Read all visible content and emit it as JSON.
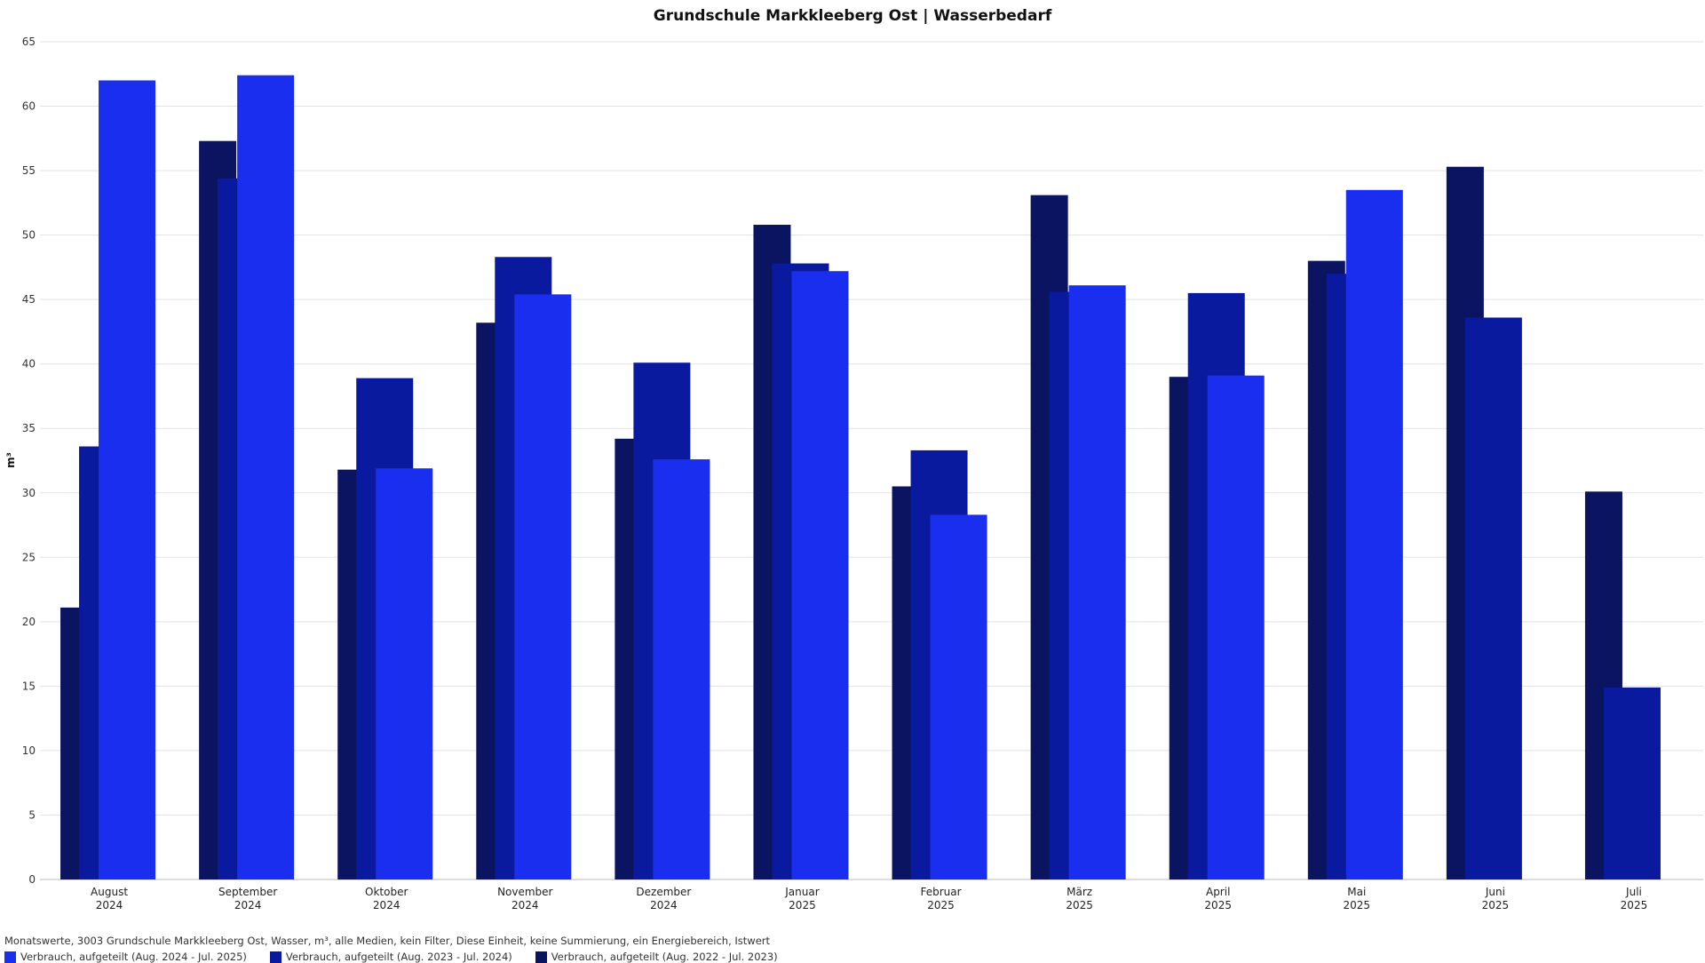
{
  "chart_data": {
    "type": "bar",
    "title": "Grundschule Markkleeberg Ost | Wasserbedarf",
    "ylabel": "m³",
    "ylim": [
      0,
      65
    ],
    "yticks": [
      0,
      5,
      10,
      15,
      20,
      25,
      30,
      35,
      40,
      45,
      50,
      55,
      60,
      65
    ],
    "grid": true,
    "legend_position": "bottom-left",
    "categories": [
      {
        "month": "August",
        "year": "2024"
      },
      {
        "month": "September",
        "year": "2024"
      },
      {
        "month": "Oktober",
        "year": "2024"
      },
      {
        "month": "November",
        "year": "2024"
      },
      {
        "month": "Dezember",
        "year": "2024"
      },
      {
        "month": "Januar",
        "year": "2025"
      },
      {
        "month": "Februar",
        "year": "2025"
      },
      {
        "month": "März",
        "year": "2025"
      },
      {
        "month": "April",
        "year": "2025"
      },
      {
        "month": "Mai",
        "year": "2025"
      },
      {
        "month": "Juni",
        "year": "2025"
      },
      {
        "month": "Juli",
        "year": "2025"
      }
    ],
    "series": [
      {
        "name": "Verbrauch, aufgeteilt (Aug. 2022 - Jul. 2023)",
        "color": "#0b1460",
        "values": [
          21.1,
          57.3,
          31.8,
          43.2,
          34.2,
          50.8,
          30.5,
          53.1,
          39.0,
          48.0,
          55.3,
          30.1
        ]
      },
      {
        "name": "Verbrauch, aufgeteilt (Aug. 2023 - Jul. 2024)",
        "color": "#0a1a9e",
        "values": [
          33.6,
          54.4,
          38.9,
          48.3,
          40.1,
          47.8,
          33.3,
          45.6,
          45.5,
          47.0,
          43.6,
          14.9
        ]
      },
      {
        "name": "Verbrauch, aufgeteilt (Aug. 2024 - Jul. 2025)",
        "color": "#1a2ef0",
        "values": [
          62.0,
          62.4,
          31.9,
          45.4,
          32.6,
          47.2,
          28.3,
          46.1,
          39.1,
          53.5,
          null,
          null
        ]
      }
    ]
  },
  "subtitle": "Monatswerte, 3003 Grundschule Markkleeberg Ost, Wasser, m³, alle Medien, kein Filter, Diese Einheit, keine Summierung, ein Energiebereich, Istwert",
  "legend": [
    {
      "label": "Verbrauch, aufgeteilt (Aug. 2024 - Jul. 2025)",
      "color": "#1a2ef0"
    },
    {
      "label": "Verbrauch, aufgeteilt (Aug. 2023 - Jul. 2024)",
      "color": "#0a1a9e"
    },
    {
      "label": "Verbrauch, aufgeteilt (Aug. 2022 - Jul. 2023)",
      "color": "#0b1460"
    }
  ]
}
